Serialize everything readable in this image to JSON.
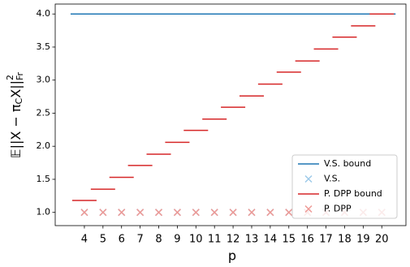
{
  "chart_data": {
    "type": "scatter",
    "xlabel": "p",
    "ylabel": {
      "lead": "𝔼||X − π",
      "sub": "C",
      "tail": "X||",
      "sup": "2",
      "sub2": "Fr"
    },
    "x": [
      4,
      5,
      6,
      7,
      8,
      9,
      10,
      11,
      12,
      13,
      14,
      15,
      16,
      17,
      18,
      19,
      20
    ],
    "xlim": [
      2.43,
      21.3
    ],
    "xticks": [
      4,
      5,
      6,
      7,
      8,
      9,
      10,
      11,
      12,
      13,
      14,
      15,
      16,
      17,
      18,
      19,
      20
    ],
    "ylim": [
      0.8,
      4.15
    ],
    "yticks": [
      {
        "value": 1,
        "label": "1.0"
      },
      {
        "value": 1.5,
        "label": "1.5"
      },
      {
        "value": 2,
        "label": "2.0"
      },
      {
        "value": 2.5,
        "label": "2.5"
      },
      {
        "value": 3,
        "label": "3.0"
      },
      {
        "value": 3.5,
        "label": "3.5"
      },
      {
        "value": 4,
        "label": "4.0"
      }
    ],
    "legend": "lower right",
    "series": [
      {
        "name": "V.S. bound",
        "color": "#1f77b4",
        "marker": "line",
        "values": [
          4,
          4,
          4,
          4,
          4,
          4,
          4,
          4,
          4,
          4,
          4,
          4,
          4,
          4,
          4,
          4,
          4
        ]
      },
      {
        "name": "V.S.",
        "color": "#9ecae9",
        "marker": "x",
        "values": [
          1,
          1,
          1,
          1,
          1,
          1,
          1,
          1,
          1,
          1,
          1,
          1,
          1,
          1,
          1,
          1,
          1
        ]
      },
      {
        "name": "P. DPP bound",
        "color": "#d62728",
        "marker": "dash",
        "values": [
          1.18,
          1.35,
          1.53,
          1.71,
          1.88,
          2.06,
          2.24,
          2.41,
          2.59,
          2.76,
          2.94,
          3.12,
          3.29,
          3.47,
          3.65,
          3.82,
          4.0
        ]
      },
      {
        "name": "P. DPP",
        "color": "#ee9a96",
        "marker": "x",
        "values": [
          1,
          1,
          1,
          1,
          1,
          1,
          1,
          1,
          1,
          1,
          1,
          1,
          1,
          1,
          1,
          1,
          1
        ]
      }
    ]
  }
}
